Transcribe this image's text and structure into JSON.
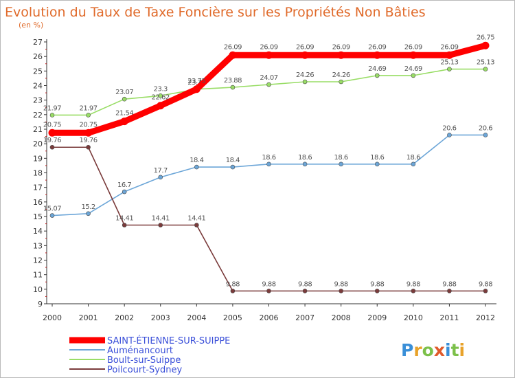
{
  "chart_data": {
    "type": "line",
    "title": "Evolution du Taux de Taxe Foncière sur les Propriétés Non Bâties",
    "ylabel": "(en %)",
    "xlabel": "",
    "x": [
      "2000",
      "2001",
      "2002",
      "2003",
      "2004",
      "2005",
      "2006",
      "2007",
      "2008",
      "2009",
      "2010",
      "2011",
      "2012"
    ],
    "ylim": [
      9,
      27
    ],
    "yticks": [
      "9",
      "10",
      "11",
      "12",
      "13",
      "14",
      "15",
      "16",
      "17",
      "18",
      "19",
      "20",
      "21",
      "22",
      "23",
      "24",
      "25",
      "26",
      "27"
    ],
    "grid": false,
    "legend_position": "bottom-left",
    "series": [
      {
        "name": "SAINT-ÉTIENNE-SUR-SUIPPE",
        "color": "#ff0000",
        "values": [
          20.75,
          20.75,
          21.54,
          22.62,
          23.75,
          26.09,
          26.09,
          26.09,
          26.09,
          26.09,
          26.09,
          26.09,
          26.75
        ],
        "labels": [
          "20.75",
          "20.75",
          "21.54",
          "22.62",
          "23.75",
          "26.09",
          "26.09",
          "26.09",
          "26.09",
          "26.09",
          "26.09",
          "26.09",
          "26.75"
        ]
      },
      {
        "name": "Auménancourt",
        "color": "#6ca6d8",
        "values": [
          15.07,
          15.2,
          16.7,
          17.7,
          18.4,
          18.4,
          18.6,
          18.6,
          18.6,
          18.6,
          18.6,
          20.6,
          20.6
        ],
        "labels": [
          "15.07",
          "15.2",
          "16.7",
          "17.7",
          "18.4",
          "18.4",
          "18.6",
          "18.6",
          "18.6",
          "18.6",
          "18.6",
          "20.6",
          "20.6"
        ]
      },
      {
        "name": "Boult-sur-Suippe",
        "color": "#99dd66",
        "values": [
          21.97,
          21.97,
          23.07,
          23.3,
          23.75,
          23.88,
          24.07,
          24.26,
          24.26,
          24.69,
          24.69,
          25.13,
          25.13
        ],
        "labels": [
          "21.97",
          "21.97",
          "23.07",
          "23.3",
          "23.75",
          "23.88",
          "24.07",
          "24.26",
          "24.26",
          "24.69",
          "24.69",
          "25.13",
          "25.13"
        ]
      },
      {
        "name": "Poilcourt-Sydney",
        "color": "#7a3b3b",
        "values": [
          19.76,
          19.76,
          14.41,
          14.41,
          14.41,
          9.88,
          9.88,
          9.88,
          9.88,
          9.88,
          9.88,
          9.88,
          9.88
        ],
        "labels": [
          "19.76",
          "19.76",
          "14.41",
          "14.41",
          "14.41",
          "9.88",
          "9.88",
          "9.88",
          "9.88",
          "9.88",
          "9.88",
          "9.88",
          "9.88"
        ]
      }
    ]
  },
  "brand": {
    "letters": [
      "P",
      "r",
      "o",
      "x",
      "i",
      "t",
      "i"
    ],
    "colors": [
      "#3a8fd8",
      "#e8a22a",
      "#7cc04a",
      "#e05a2a",
      "#3a8fd8",
      "#7cc04a",
      "#e8a22a"
    ]
  }
}
